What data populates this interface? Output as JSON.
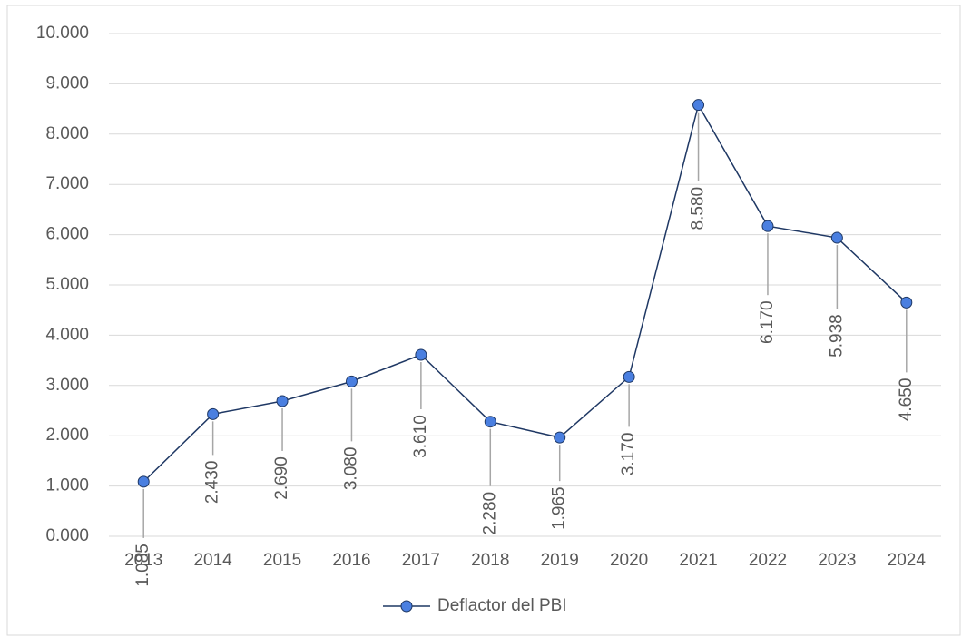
{
  "chart_data": {
    "type": "line",
    "categories": [
      "2013",
      "2014",
      "2015",
      "2016",
      "2017",
      "2018",
      "2019",
      "2020",
      "2021",
      "2022",
      "2023",
      "2024"
    ],
    "series": [
      {
        "name": "Deflactor del PBI",
        "color": "#1f3864",
        "marker_color": "#4a7fe0",
        "values": [
          1.085,
          2.43,
          2.69,
          3.08,
          3.61,
          2.28,
          1.965,
          3.17,
          8.58,
          6.17,
          5.938,
          4.65
        ],
        "value_labels": [
          "1.085",
          "2.430",
          "2.690",
          "3.080",
          "3.610",
          "2.280",
          "1.965",
          "3.170",
          "8.580",
          "6.170",
          "5.938",
          "4.650"
        ]
      }
    ],
    "ylim": [
      0,
      10
    ],
    "yticks": [
      {
        "value": 0,
        "label": "0.000"
      },
      {
        "value": 1,
        "label": "1.000"
      },
      {
        "value": 2,
        "label": "2.000"
      },
      {
        "value": 3,
        "label": "3.000"
      },
      {
        "value": 4,
        "label": "4.000"
      },
      {
        "value": 5,
        "label": "5.000"
      },
      {
        "value": 6,
        "label": "6.000"
      },
      {
        "value": 7,
        "label": "7.000"
      },
      {
        "value": 8,
        "label": "8.000"
      },
      {
        "value": 9,
        "label": "9.000"
      },
      {
        "value": 10,
        "label": "10.000"
      }
    ],
    "grid": true,
    "legend": "bottom"
  }
}
